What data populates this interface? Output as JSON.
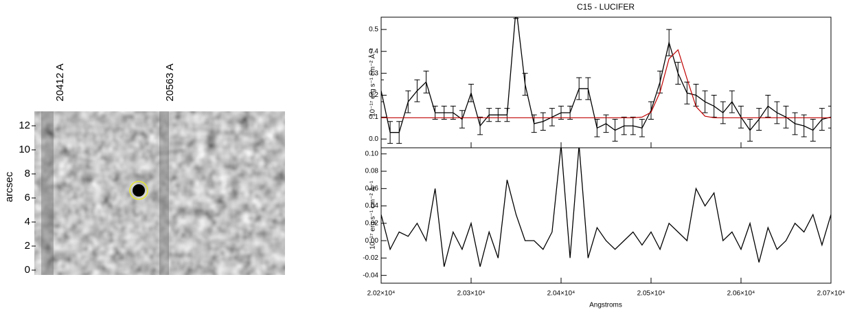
{
  "chart_data": [
    {
      "type": "image",
      "ylabel": "arcsec",
      "ylim": [
        -0.4,
        13.2
      ],
      "yticks": [
        0,
        2,
        4,
        6,
        8,
        10,
        12
      ],
      "column_labels": [
        "20412 A",
        "20563 A"
      ]
    },
    {
      "type": "line",
      "title": "C15 - LUCIFER",
      "ylabel": "10⁻¹⁷ erg s⁻¹ cm⁻² Å⁻¹",
      "xlim": [
        20200,
        20700
      ],
      "ylim": [
        -0.04,
        0.556
      ],
      "yticks": [
        {
          "value": 0,
          "label": "0.0"
        },
        0.1,
        0.2,
        0.3,
        0.4,
        0.5
      ],
      "x": [
        20200,
        20210,
        20220,
        20230,
        20240,
        20250,
        20260,
        20270,
        20280,
        20290,
        20300,
        20310,
        20320,
        20330,
        20340,
        20350,
        20360,
        20370,
        20380,
        20390,
        20400,
        20410,
        20420,
        20430,
        20440,
        20450,
        20460,
        20470,
        20480,
        20490,
        20500,
        20510,
        20520,
        20530,
        20540,
        20550,
        20560,
        20570,
        20580,
        20590,
        20600,
        20610,
        20620,
        20630,
        20640,
        20650,
        20660,
        20670,
        20680,
        20690,
        20700
      ],
      "series": [
        {
          "color": "#000000",
          "values": [
            0.22,
            0.03,
            0.03,
            0.17,
            0.22,
            0.26,
            0.12,
            0.12,
            0.12,
            0.09,
            0.21,
            0.06,
            0.11,
            0.11,
            0.11,
            0.6,
            0.25,
            0.07,
            0.08,
            0.1,
            0.12,
            0.12,
            0.23,
            0.23,
            0.05,
            0.07,
            0.04,
            0.06,
            0.06,
            0.05,
            0.13,
            0.26,
            0.44,
            0.3,
            0.21,
            0.2,
            0.17,
            0.15,
            0.12,
            0.17,
            0.1,
            0.04,
            0.09,
            0.15,
            0.12,
            0.1,
            0.07,
            0.06,
            0.04,
            0.09,
            0.1
          ],
          "errors": [
            0.05,
            0.05,
            0.05,
            0.05,
            0.05,
            0.05,
            0.03,
            0.03,
            0.03,
            0.04,
            0.04,
            0.04,
            0.03,
            0.03,
            0.03,
            0.05,
            0.05,
            0.04,
            0.04,
            0.04,
            0.03,
            0.03,
            0.05,
            0.05,
            0.04,
            0.04,
            0.05,
            0.04,
            0.04,
            0.04,
            0.04,
            0.05,
            0.06,
            0.05,
            0.05,
            0.05,
            0.05,
            0.05,
            0.05,
            0.05,
            0.05,
            0.05,
            0.05,
            0.05,
            0.05,
            0.05,
            0.05,
            0.05,
            0.05,
            0.05,
            0.05
          ]
        },
        {
          "color": "#c00000",
          "values": [
            0.097,
            0.097,
            0.097,
            0.097,
            0.097,
            0.097,
            0.097,
            0.097,
            0.097,
            0.097,
            0.097,
            0.097,
            0.097,
            0.097,
            0.097,
            0.097,
            0.097,
            0.097,
            0.097,
            0.097,
            0.097,
            0.097,
            0.097,
            0.097,
            0.097,
            0.097,
            0.097,
            0.097,
            0.097,
            0.1,
            0.122,
            0.214,
            0.366,
            0.407,
            0.275,
            0.148,
            0.104,
            0.097,
            0.097,
            0.097,
            0.097,
            0.097,
            0.097,
            0.097,
            0.097,
            0.097,
            0.097,
            0.097,
            0.097,
            0.097,
            0.097
          ]
        }
      ]
    },
    {
      "type": "line",
      "ylabel": "10⁻¹⁷ erg s⁻¹ cm⁻² Å⁻¹",
      "xlabel": "Angstroms",
      "xlim": [
        20200,
        20700
      ],
      "ylim": [
        -0.049,
        0.107
      ],
      "xticks": [
        {
          "value": 20200,
          "label": "2.02×10⁴"
        },
        {
          "value": 20300,
          "label": "2.03×10⁴"
        },
        {
          "value": 20400,
          "label": "2.04×10⁴"
        },
        {
          "value": 20500,
          "label": "2.05×10⁴"
        },
        {
          "value": 20600,
          "label": "2.06×10⁴"
        },
        {
          "value": 20700,
          "label": "2.07×10⁴"
        }
      ],
      "yticks": [
        -0.04,
        -0.02,
        {
          "value": 0,
          "label": "0.00"
        },
        0.02,
        0.04,
        0.06,
        0.08,
        {
          "value": 0.1,
          "label": "0.10"
        }
      ],
      "x": [
        20200,
        20210,
        20220,
        20230,
        20240,
        20250,
        20260,
        20270,
        20280,
        20290,
        20300,
        20310,
        20320,
        20330,
        20340,
        20350,
        20360,
        20370,
        20380,
        20390,
        20400,
        20410,
        20420,
        20430,
        20440,
        20450,
        20460,
        20470,
        20480,
        20490,
        20500,
        20510,
        20520,
        20530,
        20540,
        20550,
        20560,
        20570,
        20580,
        20590,
        20600,
        20610,
        20620,
        20630,
        20640,
        20650,
        20660,
        20670,
        20680,
        20690,
        20700
      ],
      "series": [
        {
          "color": "#000000",
          "values": [
            0.03,
            -0.01,
            0.01,
            0.005,
            0.02,
            0,
            0.06,
            -0.03,
            0.01,
            -0.01,
            0.02,
            -0.03,
            0.01,
            -0.02,
            0.07,
            0.03,
            0,
            0,
            -0.01,
            0.01,
            0.11,
            -0.02,
            0.11,
            -0.02,
            0.015,
            0,
            -0.01,
            0,
            0.01,
            -0.005,
            0.01,
            -0.01,
            0.02,
            0.01,
            0,
            0.06,
            0.04,
            0.055,
            0,
            0.01,
            -0.01,
            0.02,
            -0.025,
            0.015,
            -0.01,
            0,
            0.02,
            0.01,
            0.03,
            -0.005,
            0.03
          ]
        }
      ]
    }
  ]
}
